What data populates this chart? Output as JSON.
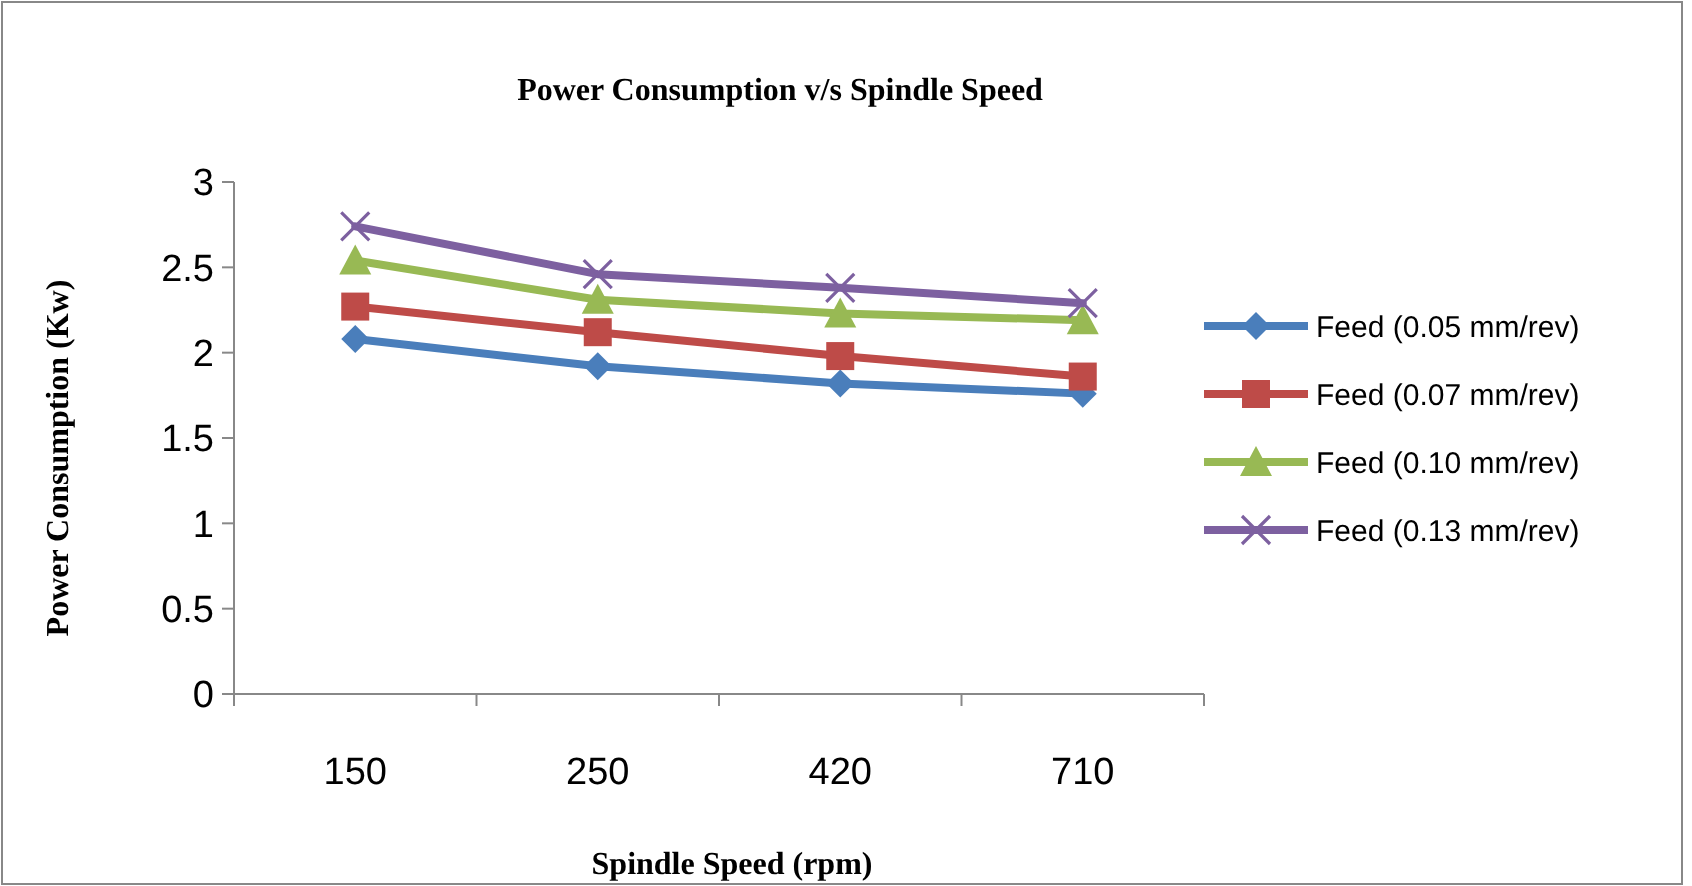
{
  "chart_data": {
    "type": "line",
    "title": "Power Consumption v/s Spindle Speed",
    "xlabel": "Spindle Speed (rpm)",
    "ylabel": "Power Consumption (Kw)",
    "categories": [
      "150",
      "250",
      "420",
      "710"
    ],
    "ylim": [
      0,
      3
    ],
    "yticks": [
      0,
      0.5,
      1,
      1.5,
      2,
      2.5,
      3
    ],
    "grid": false,
    "legend": "right",
    "series": [
      {
        "name": "Feed (0.05 mm/rev)",
        "color": "#4a7ebb",
        "marker": "diamond",
        "values": [
          2.08,
          1.92,
          1.82,
          1.76
        ]
      },
      {
        "name": "Feed (0.07 mm/rev)",
        "color": "#be4b48",
        "marker": "square",
        "values": [
          2.27,
          2.12,
          1.98,
          1.86
        ]
      },
      {
        "name": "Feed (0.10 mm/rev)",
        "color": "#98b954",
        "marker": "triangle",
        "values": [
          2.54,
          2.31,
          2.23,
          2.19
        ]
      },
      {
        "name": "Feed (0.13 mm/rev)",
        "color": "#7d60a0",
        "marker": "cross",
        "values": [
          2.74,
          2.46,
          2.38,
          2.29
        ]
      }
    ]
  }
}
